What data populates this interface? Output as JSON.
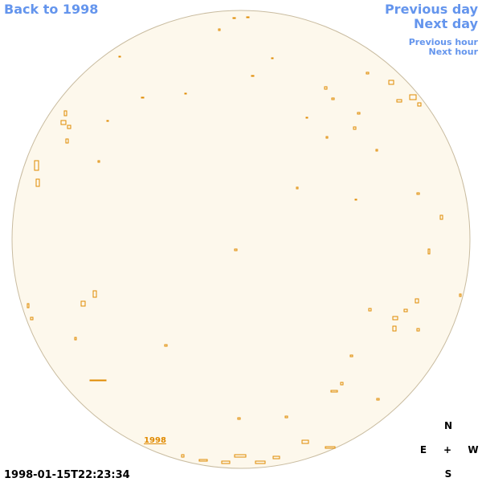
{
  "navigation": {
    "back_to_year": "Back to 1998",
    "previous_day": "Previous day",
    "next_day": "Next day",
    "previous_hour": "Previous hour",
    "next_hour": "Next hour"
  },
  "timestamp": "1998-01-15T22:23:34",
  "compass": {
    "north": "N",
    "east": "E",
    "center": "+",
    "west": "W",
    "south": "S"
  },
  "disk_label": "1998"
}
